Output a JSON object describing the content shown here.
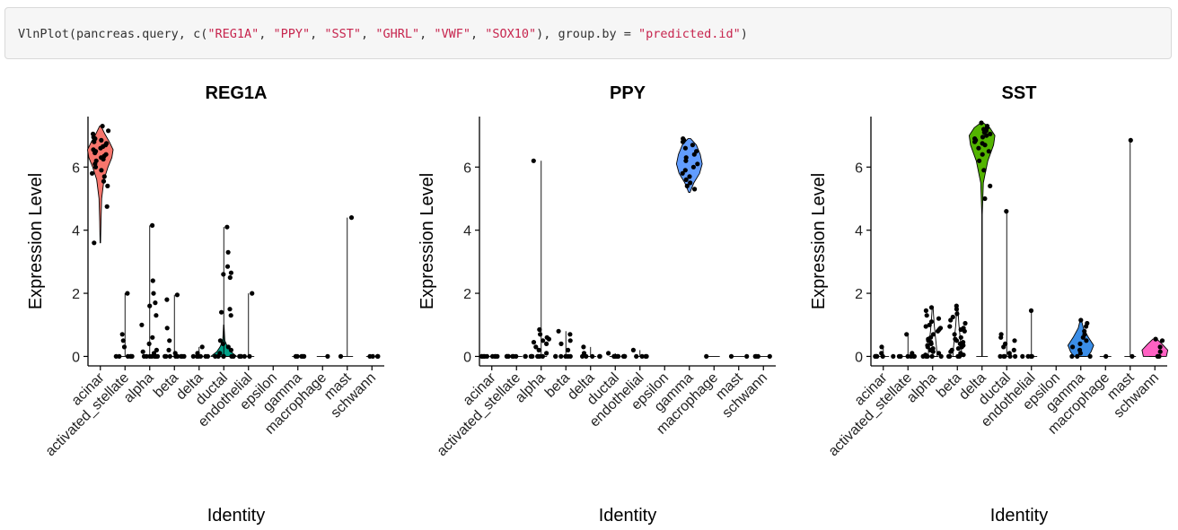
{
  "code": {
    "segments": [
      {
        "text": "VlnPlot(pancreas.query, c(",
        "kind": "plain"
      },
      {
        "text": "\"REG1A\"",
        "kind": "str"
      },
      {
        "text": ", ",
        "kind": "plain"
      },
      {
        "text": "\"PPY\"",
        "kind": "str"
      },
      {
        "text": ", ",
        "kind": "plain"
      },
      {
        "text": "\"SST\"",
        "kind": "str"
      },
      {
        "text": ", ",
        "kind": "plain"
      },
      {
        "text": "\"GHRL\"",
        "kind": "str"
      },
      {
        "text": ", ",
        "kind": "plain"
      },
      {
        "text": "\"VWF\"",
        "kind": "str"
      },
      {
        "text": ", ",
        "kind": "plain"
      },
      {
        "text": "\"SOX10\"",
        "kind": "str"
      },
      {
        "text": "), group.by = ",
        "kind": "plain"
      },
      {
        "text": "\"predicted.id\"",
        "kind": "str"
      },
      {
        "text": ")",
        "kind": "plain"
      }
    ],
    "string_color": "#c7254e"
  },
  "chart_data": [
    {
      "type": "violin",
      "title": "REG1A",
      "xlabel": "Identity",
      "ylabel": "Expression Level",
      "ylim": [
        -0.3,
        7.6
      ],
      "yticks": [
        0,
        2,
        4,
        6
      ],
      "categories": [
        "acinar",
        "activated_stellate",
        "alpha",
        "beta",
        "delta",
        "ductal",
        "endothelial",
        "epsilon",
        "gamma",
        "macrophage",
        "mast",
        "schwann"
      ],
      "fill_category": "acinar",
      "fill_color": "#f8766d",
      "violins": [
        {
          "category": "acinar",
          "max": 7.3,
          "min": 3.6,
          "body": [
            [
              3.6,
              0.02
            ],
            [
              4.3,
              0.05
            ],
            [
              5.0,
              0.1
            ],
            [
              5.6,
              0.28
            ],
            [
              6.0,
              0.6
            ],
            [
              6.3,
              0.9
            ],
            [
              6.55,
              1.0
            ],
            [
              6.8,
              0.7
            ],
            [
              7.05,
              0.35
            ],
            [
              7.3,
              0.05
            ]
          ],
          "points": [
            7.3,
            7.15,
            7.05,
            6.95,
            6.9,
            6.85,
            6.8,
            6.75,
            6.7,
            6.65,
            6.6,
            6.55,
            6.5,
            6.45,
            6.4,
            6.35,
            6.3,
            6.25,
            6.2,
            6.1,
            6.0,
            5.9,
            5.8,
            5.7,
            5.55,
            5.4,
            4.75,
            3.6
          ]
        },
        {
          "category": "activated_stellate",
          "max": 2.0,
          "min": 0,
          "points": [
            2.0,
            0.7,
            0.5,
            0.3,
            0,
            0,
            0,
            0,
            0,
            0
          ]
        },
        {
          "category": "alpha",
          "max": 4.15,
          "min": 0,
          "points": [
            4.15,
            2.4,
            2.0,
            1.7,
            1.6,
            1.3,
            1.0,
            0.6,
            0.4,
            0.2,
            0.15,
            0.1,
            0,
            0,
            0,
            0,
            0,
            0,
            0,
            0
          ]
        },
        {
          "category": "beta",
          "max": 1.95,
          "min": 0,
          "points": [
            1.95,
            1.8,
            0.9,
            0.5,
            0.2,
            0.1,
            0,
            0,
            0,
            0,
            0,
            0,
            0,
            0
          ]
        },
        {
          "category": "delta",
          "max": 0.3,
          "min": 0,
          "points": [
            0.3,
            0.1,
            0,
            0,
            0,
            0,
            0,
            0
          ]
        },
        {
          "category": "ductal",
          "max": 4.1,
          "min": 0,
          "body": [
            [
              0,
              1.0
            ],
            [
              0.15,
              0.55
            ],
            [
              0.3,
              0.3
            ],
            [
              0.5,
              0.08
            ],
            [
              1.0,
              0.02
            ]
          ],
          "fill_color": "#00a087",
          "points": [
            4.1,
            3.3,
            2.85,
            2.65,
            2.6,
            2.5,
            1.5,
            1.4,
            1.3,
            0.5,
            0.4,
            0.3,
            0.2,
            0.1,
            0,
            0,
            0,
            0,
            0,
            0
          ]
        },
        {
          "category": "endothelial",
          "max": 2.0,
          "min": 0,
          "points": [
            2.0,
            0,
            0,
            0,
            0,
            0
          ]
        },
        {
          "category": "gamma",
          "max": 0,
          "min": 0,
          "points": [
            0,
            0,
            0,
            0,
            0
          ]
        },
        {
          "category": "macrophage",
          "max": 0,
          "min": 0,
          "points": [
            0
          ]
        },
        {
          "category": "mast",
          "max": 4.4,
          "min": 0,
          "points": [
            4.4,
            0
          ]
        },
        {
          "category": "schwann",
          "max": 0,
          "min": 0,
          "points": [
            0,
            0,
            0,
            0
          ]
        }
      ]
    },
    {
      "type": "violin",
      "title": "PPY",
      "xlabel": "Identity",
      "ylabel": "Expression Level",
      "ylim": [
        -0.3,
        7.6
      ],
      "yticks": [
        0,
        2,
        4,
        6
      ],
      "categories": [
        "acinar",
        "activated_stellate",
        "alpha",
        "beta",
        "delta",
        "ductal",
        "endothelial",
        "epsilon",
        "gamma",
        "macrophage",
        "mast",
        "schwann"
      ],
      "fill_category": "gamma",
      "fill_color": "#619cff",
      "violins": [
        {
          "category": "acinar",
          "max": 0,
          "min": 0,
          "points": [
            0,
            0,
            0,
            0,
            0,
            0,
            0,
            0,
            0
          ]
        },
        {
          "category": "activated_stellate",
          "max": 0,
          "min": 0,
          "points": [
            0,
            0,
            0,
            0,
            0,
            0,
            0,
            0,
            0
          ]
        },
        {
          "category": "alpha",
          "max": 6.2,
          "min": 0,
          "points": [
            6.2,
            0.85,
            0.7,
            0.6,
            0.55,
            0.5,
            0.45,
            0.4,
            0.3,
            0.2,
            0.1,
            0,
            0,
            0,
            0,
            0,
            0,
            0
          ]
        },
        {
          "category": "beta",
          "max": 0.8,
          "min": 0,
          "points": [
            0.8,
            0.7,
            0.5,
            0.4,
            0.2,
            0,
            0,
            0,
            0,
            0,
            0
          ]
        },
        {
          "category": "delta",
          "max": 0.3,
          "min": 0,
          "points": [
            0.3,
            0.1,
            0,
            0,
            0,
            0,
            0
          ]
        },
        {
          "category": "ductal",
          "max": 0.1,
          "min": 0,
          "points": [
            0.1,
            0,
            0,
            0,
            0,
            0,
            0,
            0,
            0
          ]
        },
        {
          "category": "endothelial",
          "max": 0.2,
          "min": 0,
          "points": [
            0.2,
            0,
            0,
            0,
            0
          ]
        },
        {
          "category": "gamma",
          "max": 6.9,
          "min": 5.2,
          "body": [
            [
              5.2,
              0.05
            ],
            [
              5.5,
              0.35
            ],
            [
              5.8,
              0.8
            ],
            [
              6.1,
              1.0
            ],
            [
              6.4,
              0.85
            ],
            [
              6.7,
              0.55
            ],
            [
              6.9,
              0.1
            ]
          ],
          "points": [
            6.9,
            6.85,
            6.8,
            6.7,
            6.6,
            6.5,
            6.4,
            6.3,
            6.2,
            6.1,
            6.0,
            5.9,
            5.8,
            5.7,
            5.6,
            5.5,
            5.4,
            5.3
          ]
        },
        {
          "category": "macrophage",
          "max": 0,
          "min": 0,
          "points": [
            0
          ]
        },
        {
          "category": "mast",
          "max": 0,
          "min": 0,
          "points": [
            0,
            0
          ]
        },
        {
          "category": "schwann",
          "max": 0,
          "min": 0,
          "points": [
            0,
            0,
            0,
            0
          ]
        }
      ]
    },
    {
      "type": "violin",
      "title": "SST",
      "xlabel": "Identity",
      "ylabel": "Expression Level",
      "ylim": [
        -0.3,
        7.6
      ],
      "yticks": [
        0,
        2,
        4,
        6
      ],
      "categories": [
        "acinar",
        "activated_stellate",
        "alpha",
        "beta",
        "delta",
        "ductal",
        "endothelial",
        "epsilon",
        "gamma",
        "macrophage",
        "mast",
        "schwann"
      ],
      "fill_category": "delta",
      "fill_color": "#53b400",
      "violins": [
        {
          "category": "acinar",
          "max": 0.3,
          "min": 0,
          "points": [
            0.3,
            0.1,
            0,
            0,
            0,
            0,
            0,
            0
          ]
        },
        {
          "category": "activated_stellate",
          "max": 0.7,
          "min": 0,
          "points": [
            0.7,
            0.1,
            0,
            0,
            0,
            0,
            0,
            0
          ]
        },
        {
          "category": "alpha",
          "max": 1.55,
          "min": 0,
          "body": [
            [
              0,
              0.35
            ],
            [
              0.3,
              0.3
            ],
            [
              0.6,
              0.22
            ],
            [
              1.0,
              0.12
            ],
            [
              1.55,
              0.03
            ]
          ],
          "no_fill": true,
          "points": [
            1.55,
            1.45,
            1.3,
            1.2,
            1.1,
            1.0,
            0.95,
            0.9,
            0.85,
            0.8,
            0.7,
            0.6,
            0.55,
            0.5,
            0.45,
            0.4,
            0.35,
            0.3,
            0.25,
            0.2,
            0.15,
            0.1,
            0.05,
            0,
            0,
            0,
            0,
            0
          ]
        },
        {
          "category": "beta",
          "max": 1.6,
          "min": 0,
          "body": [
            [
              0,
              0.35
            ],
            [
              0.3,
              0.3
            ],
            [
              0.6,
              0.22
            ],
            [
              1.0,
              0.12
            ],
            [
              1.6,
              0.03
            ]
          ],
          "no_fill": true,
          "points": [
            1.6,
            1.5,
            1.35,
            1.25,
            1.15,
            1.05,
            0.95,
            0.9,
            0.85,
            0.8,
            0.7,
            0.6,
            0.55,
            0.5,
            0.45,
            0.4,
            0.35,
            0.3,
            0.25,
            0.2,
            0.15,
            0.1,
            0.05,
            0,
            0,
            0,
            0
          ]
        },
        {
          "category": "delta",
          "max": 7.4,
          "min": 0,
          "body": [
            [
              0,
              0.02
            ],
            [
              4.5,
              0.02
            ],
            [
              5.5,
              0.1
            ],
            [
              6.2,
              0.45
            ],
            [
              6.7,
              0.9
            ],
            [
              7.0,
              1.0
            ],
            [
              7.25,
              0.6
            ],
            [
              7.4,
              0.1
            ]
          ],
          "points": [
            7.4,
            7.3,
            7.25,
            7.2,
            7.15,
            7.1,
            7.05,
            7.0,
            6.95,
            6.9,
            6.85,
            6.8,
            6.75,
            6.7,
            6.6,
            6.5,
            6.4,
            6.2,
            5.9,
            5.4,
            5.0
          ]
        },
        {
          "category": "ductal",
          "max": 4.6,
          "min": 0,
          "points": [
            4.6,
            0.7,
            0.6,
            0.5,
            0.4,
            0.3,
            0.2,
            0.1,
            0,
            0,
            0,
            0,
            0
          ]
        },
        {
          "category": "endothelial",
          "max": 1.45,
          "min": 0,
          "points": [
            1.45,
            0,
            0,
            0,
            0
          ]
        },
        {
          "category": "gamma",
          "max": 1.15,
          "min": 0,
          "body": [
            [
              0,
              0.55
            ],
            [
              0.15,
              0.8
            ],
            [
              0.35,
              1.0
            ],
            [
              0.6,
              0.6
            ],
            [
              0.9,
              0.2
            ],
            [
              1.15,
              0.05
            ]
          ],
          "fill_color": "#3b8ee8",
          "points": [
            1.15,
            1.05,
            0.95,
            0.8,
            0.7,
            0.6,
            0.5,
            0.4,
            0.3,
            0.2,
            0.1,
            0,
            0,
            0
          ]
        },
        {
          "category": "macrophage",
          "max": 0,
          "min": 0,
          "points": [
            0
          ]
        },
        {
          "category": "mast",
          "max": 6.85,
          "min": 0,
          "points": [
            6.85,
            0
          ]
        },
        {
          "category": "schwann",
          "max": 0.55,
          "min": 0,
          "body": [
            [
              0,
              0.9
            ],
            [
              0.2,
              1.0
            ],
            [
              0.4,
              0.55
            ],
            [
              0.55,
              0.15
            ]
          ],
          "fill_color": "#ff61c3",
          "points": [
            0.55,
            0.5,
            0.3,
            0.15,
            0,
            0
          ]
        }
      ]
    }
  ]
}
